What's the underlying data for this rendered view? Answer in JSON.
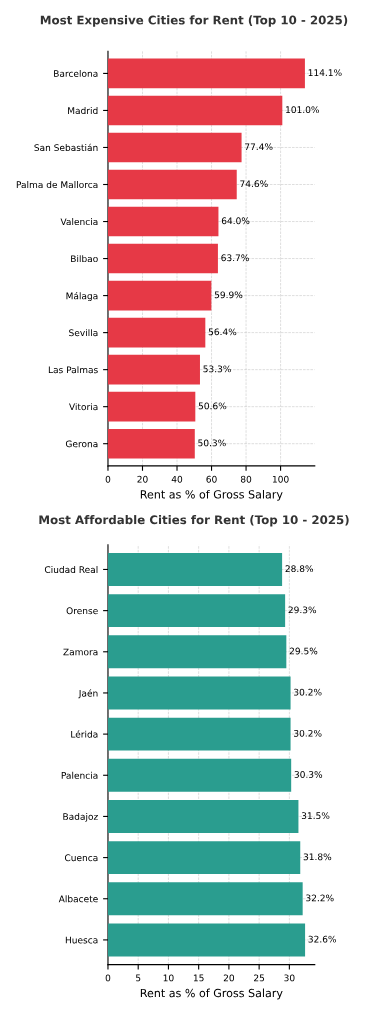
{
  "chart_data": [
    {
      "type": "bar",
      "orientation": "horizontal",
      "title": "Most Expensive Cities for Rent (Top 10 - 2025)",
      "xlabel": "Rent as % of Gross Salary",
      "categories": [
        "Barcelona",
        "Madrid",
        "San Sebastián",
        "Palma de Mallorca",
        "Valencia",
        "Bilbao",
        "Málaga",
        "Sevilla",
        "Las Palmas",
        "Vitoria",
        "Gerona"
      ],
      "values": [
        114.1,
        101.0,
        77.4,
        74.6,
        64.0,
        63.7,
        59.9,
        56.4,
        53.3,
        50.6,
        50.3
      ],
      "value_labels": [
        "114.1%",
        "101.0%",
        "77.4%",
        "74.6%",
        "64.0%",
        "63.7%",
        "59.9%",
        "56.4%",
        "53.3%",
        "50.6%",
        "50.3%"
      ],
      "color": "#e63946",
      "xlim": [
        0,
        119.8
      ],
      "xticks": [
        0,
        20,
        40,
        60,
        80,
        100
      ],
      "grid": true
    },
    {
      "type": "bar",
      "orientation": "horizontal",
      "title": "Most Affordable Cities for Rent (Top 10 - 2025)",
      "xlabel": "Rent as % of Gross Salary",
      "categories": [
        "Ciudad Real",
        "Orense",
        "Zamora",
        "Jaén",
        "Lérida",
        "Palencia",
        "Badajoz",
        "Cuenca",
        "Albacete",
        "Huesca"
      ],
      "values": [
        28.8,
        29.3,
        29.5,
        30.2,
        30.2,
        30.3,
        31.5,
        31.8,
        32.2,
        32.6
      ],
      "value_labels": [
        "28.8%",
        "29.3%",
        "29.5%",
        "30.2%",
        "30.2%",
        "30.3%",
        "31.5%",
        "31.8%",
        "32.2%",
        "32.6%"
      ],
      "color": "#2a9d8f",
      "xlim": [
        0,
        34.2
      ],
      "xticks": [
        0,
        5,
        10,
        15,
        20,
        25,
        30
      ],
      "grid": true
    }
  ]
}
